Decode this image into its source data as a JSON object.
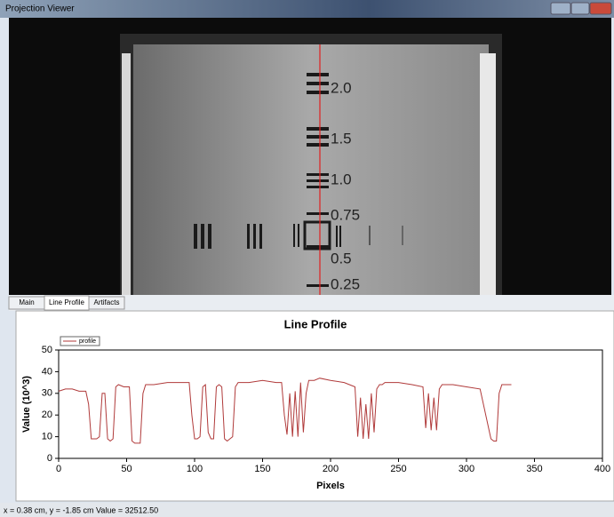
{
  "window": {
    "title": "Projection Viewer"
  },
  "image": {
    "labels": [
      "2.0",
      "1.5",
      "1.0",
      "0.75",
      "0.5",
      "0.25"
    ]
  },
  "tabs": [
    "Main",
    "Line Profile",
    "Artifacts"
  ],
  "chart_data": {
    "type": "line",
    "title": "Line Profile",
    "xlabel": "Pixels",
    "ylabel": "Value (10^3)",
    "xlim": [
      0,
      400
    ],
    "xticks": [
      0,
      50,
      100,
      150,
      200,
      250,
      300,
      350,
      400
    ],
    "ylim": [
      0,
      50
    ],
    "yticks": [
      0,
      10,
      20,
      30,
      40,
      50
    ],
    "grid": false,
    "legend": "top-left",
    "x": [
      0,
      5,
      10,
      15,
      20,
      22,
      24,
      28,
      30,
      32,
      34,
      36,
      38,
      40,
      42,
      44,
      48,
      52,
      54,
      56,
      58,
      60,
      62,
      64,
      70,
      80,
      90,
      96,
      98,
      100,
      102,
      104,
      106,
      108,
      110,
      112,
      114,
      116,
      118,
      120,
      122,
      124,
      126,
      128,
      130,
      132,
      140,
      150,
      160,
      164,
      166,
      168,
      170,
      172,
      174,
      176,
      178,
      180,
      182,
      184,
      186,
      188,
      192,
      200,
      210,
      218,
      220,
      222,
      224,
      226,
      228,
      230,
      232,
      234,
      236,
      238,
      240,
      250,
      260,
      268,
      270,
      272,
      274,
      276,
      278,
      280,
      282,
      284,
      286,
      290,
      300,
      310,
      318,
      320,
      322,
      324,
      326,
      328,
      330,
      333
    ],
    "series": [
      {
        "name": "profile",
        "color": "#b03a3a",
        "values": [
          31,
          32,
          32,
          31,
          31,
          25,
          9,
          9,
          10,
          30,
          30,
          9,
          8,
          9,
          33,
          34,
          33,
          33,
          8,
          7,
          7,
          7,
          30,
          34,
          34,
          35,
          35,
          35,
          20,
          9,
          9,
          10,
          33,
          34,
          12,
          9,
          9,
          33,
          34,
          33,
          9,
          8,
          9,
          10,
          33,
          35,
          35,
          36,
          35,
          35,
          20,
          11,
          30,
          10,
          31,
          10,
          35,
          12,
          30,
          36,
          36,
          36,
          37,
          36,
          35,
          33,
          10,
          28,
          9,
          25,
          9,
          30,
          12,
          32,
          34,
          34,
          35,
          35,
          34,
          33,
          14,
          30,
          13,
          28,
          13,
          32,
          34,
          34,
          34,
          34,
          33,
          32,
          9,
          8,
          8,
          30,
          34,
          34,
          34,
          34
        ]
      }
    ]
  },
  "status": "x = 0.38 cm, y = -1.85 cm  Value = 32512.50"
}
